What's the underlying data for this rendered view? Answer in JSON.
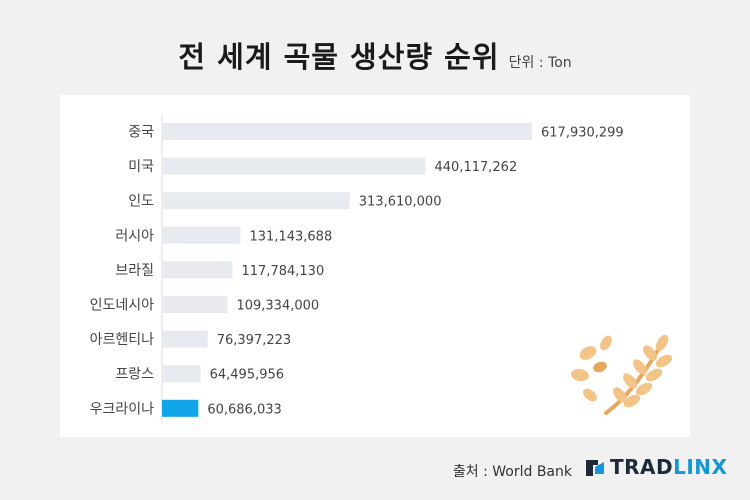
{
  "header": {
    "title": "전 세계 곡물 생산량 순위",
    "unit": "단위 : Ton"
  },
  "footer": {
    "source": "출처 : World Bank",
    "brand_main": "TRAD",
    "brand_accent": "LINX"
  },
  "icon": "wheat-icon",
  "colors": {
    "bar_default": "#e7ebf0",
    "bar_highlight": "#12a5ea",
    "wheat": "#f2c488",
    "wheat_dark": "#e8a85a"
  },
  "chart_data": {
    "type": "bar",
    "orientation": "horizontal",
    "title": "전 세계 곡물 생산량 순위",
    "unit": "단위 : Ton",
    "categories": [
      "중국",
      "미국",
      "인도",
      "러시아",
      "브라질",
      "인도네시아",
      "아르헨티나",
      "프랑스",
      "우크라이나"
    ],
    "values": [
      617930299,
      440117262,
      313610000,
      131143688,
      117784130,
      109334000,
      76397223,
      64495956,
      60686033
    ],
    "value_labels": [
      "617,930,299",
      "440,117,262",
      "313,610,000",
      "131,143,688",
      "117,784,130",
      "109,334,000",
      "76,397,223",
      "64,495,956",
      "60,686,033"
    ],
    "highlight": "우크라이나",
    "xlim": [
      0,
      617930299
    ],
    "grid": false,
    "legend": "none"
  }
}
